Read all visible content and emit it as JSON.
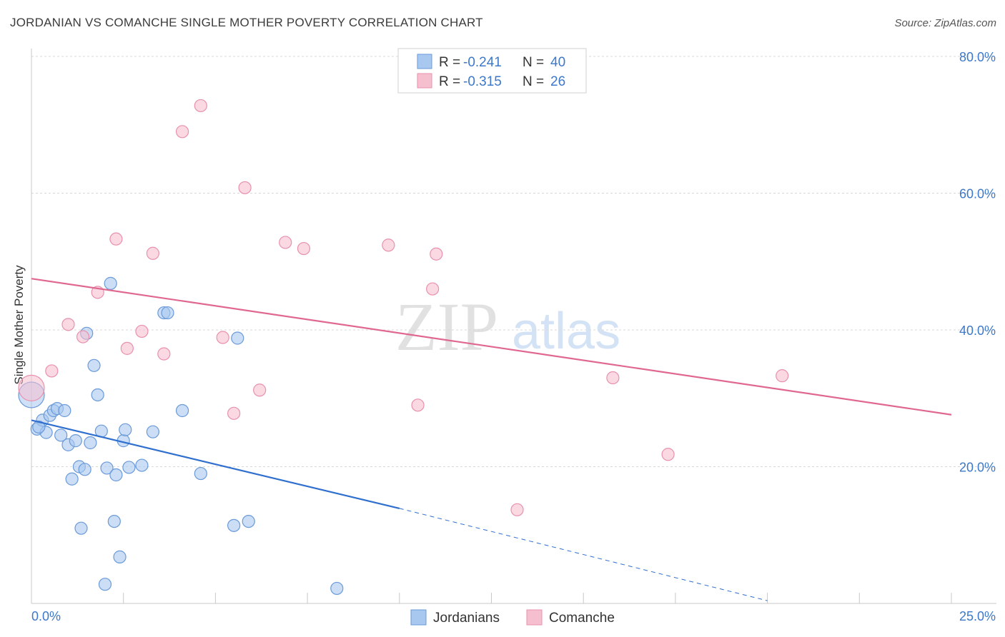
{
  "header": {
    "title": "JORDANIAN VS COMANCHE SINGLE MOTHER POVERTY CORRELATION CHART",
    "source": "Source: ZipAtlas.com"
  },
  "watermark": {
    "zip": "ZIP",
    "atlas": "atlas"
  },
  "colors": {
    "jordanians_fill": "#a9c8f0",
    "jordanians_stroke": "#6a9ad8",
    "jordanians_line": "#2f6fce",
    "comanche_fill": "#f6bfd0",
    "comanche_stroke": "#e891ad",
    "comanche_line": "#e06890",
    "grid": "#d9d9d9",
    "tick_text": "#3d78c9"
  },
  "stats_legend": {
    "rows": [
      {
        "r_label": "R = ",
        "r_value": "-0.241",
        "n_label": "N = ",
        "n_value": "40"
      },
      {
        "r_label": "R = ",
        "r_value": "-0.315",
        "n_label": "N = ",
        "n_value": "26"
      }
    ]
  },
  "chart_data": {
    "type": "scatter",
    "title": "JORDANIAN VS COMANCHE SINGLE MOTHER POVERTY CORRELATION CHART",
    "xlabel": "",
    "ylabel": "Single Mother Poverty",
    "xlim": [
      0,
      25
    ],
    "ylim": [
      0,
      80
    ],
    "x_tick_labels": [
      "0.0%",
      "25.0%"
    ],
    "y_ticks": [
      20,
      40,
      60,
      80
    ],
    "y_tick_labels": [
      "20.0%",
      "40.0%",
      "60.0%",
      "80.0%"
    ],
    "grid": true,
    "legend_position": "bottom",
    "series": [
      {
        "name": "Jordanians",
        "points": [
          [
            0.0,
            30.5
          ],
          [
            0.15,
            25.5
          ],
          [
            0.3,
            26.8
          ],
          [
            0.4,
            25.0
          ],
          [
            0.5,
            27.5
          ],
          [
            0.6,
            28.2
          ],
          [
            0.7,
            28.5
          ],
          [
            0.8,
            24.6
          ],
          [
            0.9,
            28.2
          ],
          [
            1.0,
            23.2
          ],
          [
            1.1,
            18.2
          ],
          [
            1.2,
            23.8
          ],
          [
            1.3,
            20.0
          ],
          [
            1.35,
            11.0
          ],
          [
            1.45,
            19.6
          ],
          [
            1.5,
            39.5
          ],
          [
            1.6,
            23.5
          ],
          [
            1.7,
            34.8
          ],
          [
            1.8,
            30.5
          ],
          [
            1.9,
            25.2
          ],
          [
            2.0,
            2.8
          ],
          [
            2.05,
            19.8
          ],
          [
            2.15,
            46.8
          ],
          [
            2.25,
            12.0
          ],
          [
            2.3,
            18.8
          ],
          [
            2.4,
            6.8
          ],
          [
            2.5,
            23.8
          ],
          [
            2.55,
            25.4
          ],
          [
            2.65,
            19.9
          ],
          [
            3.0,
            20.2
          ],
          [
            3.3,
            25.1
          ],
          [
            3.6,
            42.5
          ],
          [
            3.7,
            42.5
          ],
          [
            4.1,
            28.2
          ],
          [
            4.6,
            19.0
          ],
          [
            5.5,
            11.4
          ],
          [
            5.6,
            38.8
          ],
          [
            5.9,
            12.0
          ],
          [
            8.3,
            2.2
          ],
          [
            0.2,
            25.8
          ]
        ],
        "regression": {
          "x0": 0,
          "y0": 26.8,
          "x1": 10,
          "y1": 13.9,
          "dash_to_x": 20,
          "dash_to_y": 0.4
        }
      },
      {
        "name": "Comanche",
        "points": [
          [
            0.0,
            31.5
          ],
          [
            0.55,
            34.0
          ],
          [
            1.0,
            40.8
          ],
          [
            1.4,
            39.0
          ],
          [
            1.8,
            45.5
          ],
          [
            2.3,
            53.3
          ],
          [
            2.6,
            37.3
          ],
          [
            3.0,
            39.8
          ],
          [
            3.3,
            51.2
          ],
          [
            3.6,
            36.5
          ],
          [
            4.1,
            69.0
          ],
          [
            4.6,
            72.8
          ],
          [
            5.2,
            38.9
          ],
          [
            5.5,
            27.8
          ],
          [
            5.8,
            60.8
          ],
          [
            6.2,
            31.2
          ],
          [
            6.9,
            52.8
          ],
          [
            7.4,
            51.9
          ],
          [
            9.7,
            52.4
          ],
          [
            10.5,
            29.0
          ],
          [
            10.9,
            46.0
          ],
          [
            11.0,
            51.1
          ],
          [
            13.2,
            13.7
          ],
          [
            15.8,
            33.0
          ],
          [
            17.3,
            21.8
          ],
          [
            20.4,
            33.3
          ]
        ],
        "regression": {
          "x0": 0,
          "y0": 47.5,
          "x1": 25,
          "y1": 27.6
        }
      }
    ]
  },
  "bottom_legend": {
    "items": [
      "Jordanians",
      "Comanche"
    ]
  }
}
